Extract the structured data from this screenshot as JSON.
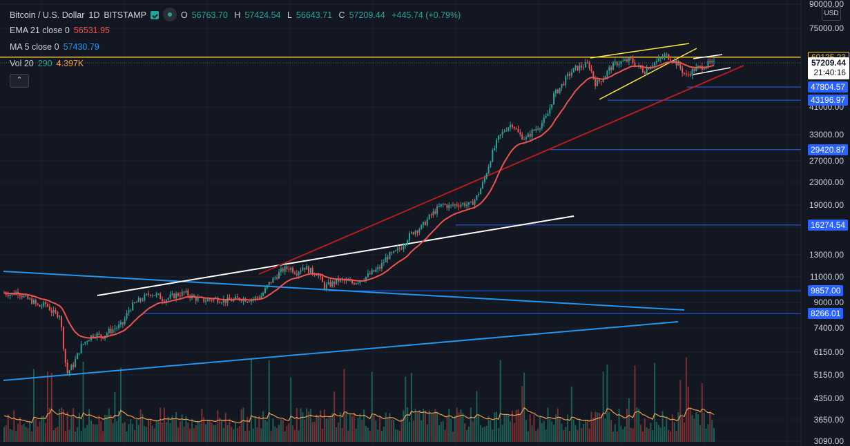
{
  "header": {
    "symbol": "Bitcoin / U.S. Dollar",
    "interval": "1D",
    "exchange": "BITSTAMP",
    "ohlc": {
      "o_key": "O",
      "o": "56763.70",
      "h_key": "H",
      "h": "57424.54",
      "l_key": "L",
      "l": "56643.71",
      "c_key": "C",
      "c": "57209.44",
      "change": "+445.74 (+0.79%)"
    }
  },
  "indicators": {
    "ema": {
      "label": "EMA 21 close 0",
      "value": "56531.95",
      "color": "#ef5350"
    },
    "ma": {
      "label": "MA 5 close 0",
      "value": "57430.79",
      "color": "#2196f3"
    },
    "vol": {
      "label": "Vol 20",
      "value1": "290",
      "value2": "4.397K"
    }
  },
  "collapse_label": "⌃",
  "price_axis": {
    "currency": "USD",
    "ticks": [
      "90000.00",
      "75000.00",
      "41000.00",
      "33000.00",
      "27000.00",
      "23000.00",
      "19000.00",
      "16000.00",
      "13000.00",
      "11000.00",
      "9000.00",
      "7400.00",
      "6150.00",
      "5150.00",
      "4350.00",
      "3650.00",
      "3090.00"
    ],
    "levels": [
      {
        "value": "60125.23",
        "style": "yellow"
      },
      {
        "value": "47804.57",
        "style": "blue"
      },
      {
        "value": "43196.97",
        "style": "blue"
      },
      {
        "value": "29420.87",
        "style": "blue"
      },
      {
        "value": "16274.54",
        "style": "blue"
      },
      {
        "value": "9857.00",
        "style": "blue"
      },
      {
        "value": "8266.01",
        "style": "blue"
      }
    ],
    "current": {
      "price": "57209.44",
      "countdown": "21:40:16"
    }
  },
  "colors": {
    "background": "#131722",
    "up": "#26a69a",
    "down": "#ef5350",
    "ema": "#ef5350",
    "level_blue": "#2962ff",
    "trend_red": "#b71c1c",
    "trend_yellow": "#ffeb3b",
    "trend_white": "#ffffff",
    "channel_blue": "#2196f3",
    "vol_ma": "#f0a050"
  },
  "chart_data": {
    "type": "candlestick",
    "scale": "log",
    "ylim": [
      3090,
      90000
    ],
    "close_path": [
      9700,
      9600,
      9800,
      9300,
      9100,
      8700,
      8900,
      8300,
      8200,
      5200,
      5600,
      6400,
      6800,
      7100,
      6900,
      7200,
      7400,
      7600,
      8600,
      9000,
      9300,
      9700,
      9500,
      9200,
      9400,
      9600,
      9700,
      9400,
      9200,
      9150,
      9250,
      9200,
      9100,
      9200,
      9300,
      9200,
      9300,
      9500,
      10400,
      11000,
      11600,
      11800,
      11400,
      11900,
      11500,
      11300,
      10200,
      10400,
      10700,
      10600,
      10500,
      10700,
      11000,
      11400,
      11800,
      12800,
      13100,
      13700,
      14800,
      15600,
      16000,
      17200,
      18200,
      19100,
      18800,
      19100,
      19200,
      19000,
      20500,
      23500,
      28000,
      32000,
      34500,
      36000,
      33000,
      32000,
      34000,
      35500,
      38000,
      45000,
      48000,
      52000,
      55000,
      56000,
      57000,
      49000,
      51000,
      55000,
      57500,
      58000,
      59000,
      56000,
      54000,
      57000,
      58500,
      61000,
      59500,
      56000,
      52000,
      54500,
      55500,
      57000,
      57209
    ]
  }
}
